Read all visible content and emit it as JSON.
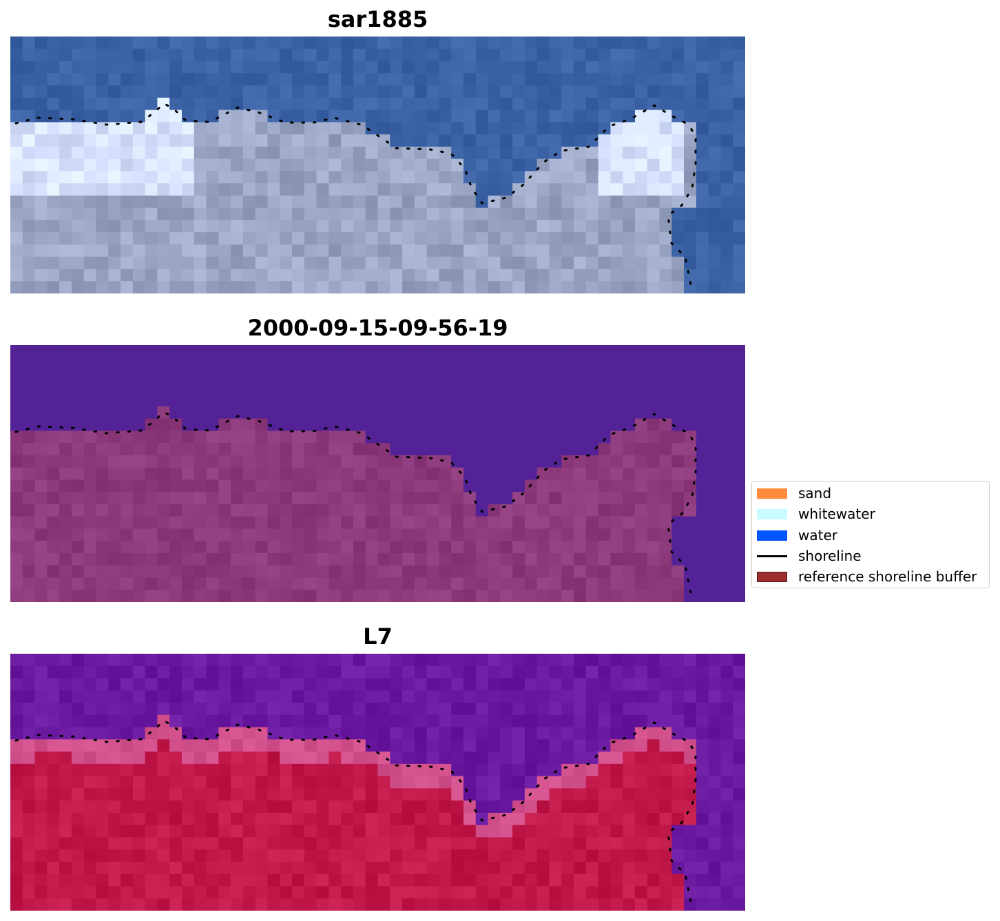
{
  "panels": [
    {
      "title": "sar1885",
      "style": "rgb"
    },
    {
      "title": "2000-09-15-09-56-19",
      "style": "classified"
    },
    {
      "title": "L7",
      "style": "falsecolor"
    }
  ],
  "legend": {
    "items": [
      {
        "label": "sand",
        "color": "#ff8c3c",
        "kind": "patch"
      },
      {
        "label": "whitewater",
        "color": "#c8fcff",
        "kind": "patch"
      },
      {
        "label": "water",
        "color": "#0055ff",
        "kind": "patch"
      },
      {
        "label": "shoreline",
        "color": "#000000",
        "kind": "line"
      },
      {
        "label": "reference shoreline buffer",
        "color": "#9b2d2d",
        "kind": "patch"
      }
    ]
  },
  "colors": {
    "rgb_water": "#3a62a4",
    "rgb_land": "#9aa6c4",
    "class_water": "#532297",
    "class_land": "#8c3a7c",
    "false_water": "#6a1aa0",
    "false_land": "#c01848"
  }
}
